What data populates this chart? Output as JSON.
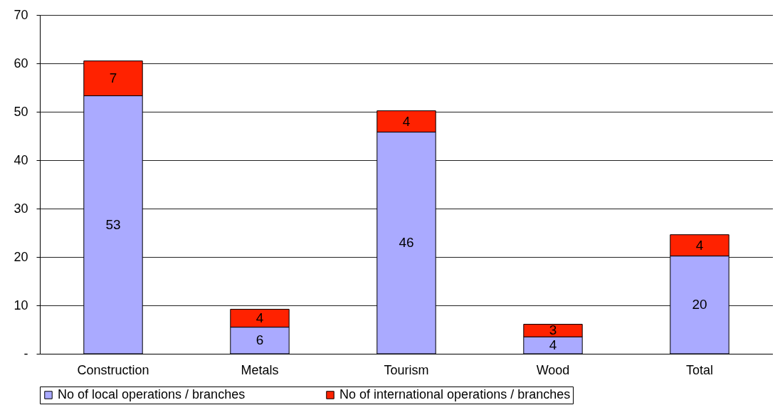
{
  "chart_data": {
    "type": "bar",
    "stacked": true,
    "categories": [
      "Construction",
      "Metals",
      "Tourism",
      "Wood",
      "Total"
    ],
    "series": [
      {
        "name": "No of local operations / branches",
        "color": "#aaaaff",
        "values": [
          53.3,
          5.5,
          45.8,
          3.5,
          20.2
        ],
        "value_labels": [
          "53",
          "6",
          "46",
          "4",
          "20"
        ]
      },
      {
        "name": "No of international operations / branches",
        "color": "#ff2200",
        "values": [
          7.2,
          3.7,
          4.4,
          2.6,
          4.4
        ],
        "value_labels": [
          "7",
          "4",
          "4",
          "3",
          "4"
        ]
      }
    ],
    "ylim": [
      0,
      70
    ],
    "yticks": [
      {
        "value": 0,
        "label": "-"
      },
      10,
      20,
      30,
      40,
      50,
      60,
      70
    ],
    "grid": "y",
    "legend": "bottom"
  }
}
